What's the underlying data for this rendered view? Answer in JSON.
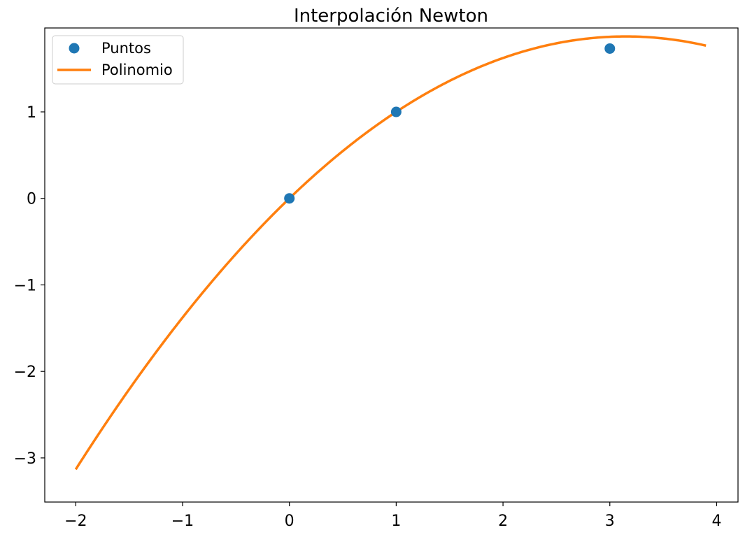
{
  "chart_data": {
    "type": "line",
    "title": "Interpolación Newton",
    "xlabel": "",
    "ylabel": "",
    "xlim": [
      -2.29,
      4.2
    ],
    "ylim": [
      -3.51,
      1.97
    ],
    "xticks": [
      -2,
      -1,
      0,
      1,
      2,
      3,
      4
    ],
    "xtick_labels": [
      "−2",
      "−1",
      "0",
      "1",
      "2",
      "3",
      "4"
    ],
    "yticks": [
      -3,
      -2,
      -1,
      0,
      1
    ],
    "ytick_labels": [
      "−3",
      "−2",
      "−1",
      "0",
      "1"
    ],
    "grid": false,
    "legend_position": "top-left",
    "series": [
      {
        "name": "Puntos",
        "kind": "scatter",
        "color": "#1f77b4",
        "points": [
          {
            "x": 0,
            "y": 0
          },
          {
            "x": 1,
            "y": 1
          },
          {
            "x": 3,
            "y": 1.732
          }
        ]
      },
      {
        "name": "Polinomio",
        "kind": "line",
        "color": "#ff7f0e",
        "x_range": [
          -2,
          3.9
        ],
        "polynomial_coefficients": [
          0,
          1.1887,
          -0.1887
        ]
      }
    ]
  }
}
